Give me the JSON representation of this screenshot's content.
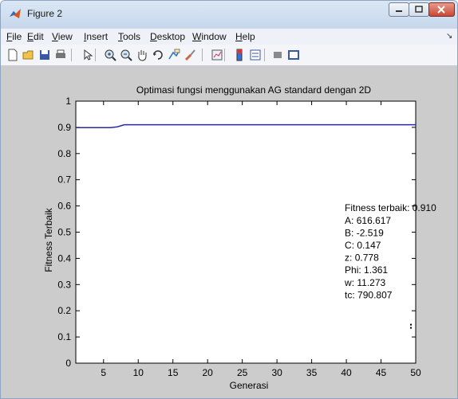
{
  "window": {
    "title": "Figure 2"
  },
  "menu": {
    "items": [
      {
        "label": "File",
        "underline_index": 0
      },
      {
        "label": "Edit",
        "underline_index": 0
      },
      {
        "label": "View",
        "underline_index": 0
      },
      {
        "label": "Insert",
        "underline_index": 0
      },
      {
        "label": "Tools",
        "underline_index": 0
      },
      {
        "label": "Desktop",
        "underline_index": 0
      },
      {
        "label": "Window",
        "underline_index": 0
      },
      {
        "label": "Help",
        "underline_index": 0
      }
    ]
  },
  "toolbar": {
    "icons": [
      "new-figure-icon",
      "open-file-icon",
      "save-icon",
      "print-icon",
      "edit-plot-arrow-icon",
      "zoom-in-icon",
      "zoom-out-icon",
      "pan-hand-icon",
      "rotate-3d-icon",
      "data-cursor-icon",
      "brush-icon",
      "link-plot-icon",
      "colorbar-icon",
      "legend-icon",
      "hide-plot-tools-icon",
      "show-plot-tools-icon"
    ]
  },
  "colors": {
    "line": "#2a2aa8",
    "figure_bg": "#cccccc",
    "axes_bg": "#ffffff"
  },
  "chart_data": {
    "type": "line",
    "title": "Optimasi fungsi menggunakan AG standard dengan 2D",
    "xlabel": "Generasi",
    "ylabel": "Fitness Terbaik",
    "xlim": [
      1,
      50
    ],
    "ylim": [
      0,
      1
    ],
    "xticks": [
      5,
      10,
      15,
      20,
      25,
      30,
      35,
      40,
      45,
      50
    ],
    "yticks": [
      0,
      0.1,
      0.2,
      0.3,
      0.4,
      0.5,
      0.6,
      0.7,
      0.8,
      0.9,
      1
    ],
    "ytick_labels": [
      "0",
      "0.1",
      "0.2",
      "0.3",
      "0.4",
      "0.5",
      "0.6",
      "0.7",
      "0.8",
      "0.9",
      "1"
    ],
    "grid": false,
    "series": [
      {
        "x": [
          1,
          2,
          3,
          4,
          5,
          6,
          7,
          8,
          9,
          10,
          15,
          20,
          25,
          30,
          35,
          40,
          45,
          50
        ],
        "values": [
          0.899,
          0.899,
          0.899,
          0.899,
          0.899,
          0.899,
          0.902,
          0.91,
          0.91,
          0.91,
          0.91,
          0.91,
          0.91,
          0.91,
          0.91,
          0.91,
          0.91,
          0.91
        ]
      }
    ],
    "annotation": {
      "lines": [
        "Fitness terbaik:  0.910",
        "A: 616.617",
        "B: -2.519",
        "C: 0.147",
        "z: 0.778",
        "Phi: 1.361",
        "w: 11.273",
        "tc: 790.807"
      ],
      "anchor": {
        "x": 40,
        "y": 0.58
      }
    }
  }
}
